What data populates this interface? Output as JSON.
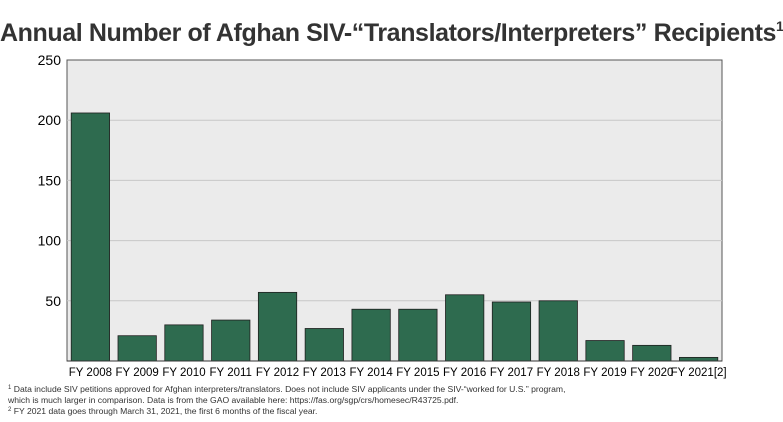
{
  "chart_data": {
    "type": "bar",
    "title": "Annual Number of Afghan SIV-“Translators/Interpreters” Recipients",
    "title_footnote_mark": "1",
    "categories": [
      "FY 2008",
      "FY 2009",
      "FY 2010",
      "FY 2011",
      "FY 2012",
      "FY 2013",
      "FY 2014",
      "FY 2015",
      "FY 2016",
      "FY 2017",
      "FY 2018",
      "FY 2019",
      "FY 2020",
      "FY 2021[2]"
    ],
    "values": [
      206,
      21,
      30,
      34,
      57,
      27,
      43,
      43,
      55,
      49,
      50,
      17,
      13,
      3
    ],
    "ylim": [
      0,
      250
    ],
    "yticks": [
      "50",
      "100",
      "150",
      "200",
      "250"
    ],
    "xlabel": "",
    "ylabel": "",
    "grid": true,
    "bar_color": "#2e6b4f",
    "plot_background": "#ebebeb"
  },
  "footnotes": [
    {
      "mark": "1",
      "lines": [
        "Data include SIV petitions approved for Afghan interpreters/translators. Does not include SIV applicants under the SIV-“worked for U.S.” program,",
        "which is much larger in comparison. Data is from the GAO available here: https://fas.org/sgp/crs/homesec/R43725.pdf."
      ]
    },
    {
      "mark": "2",
      "lines": [
        "FY 2021 data goes through March 31, 2021, the first 6 months of the fiscal year."
      ]
    }
  ]
}
